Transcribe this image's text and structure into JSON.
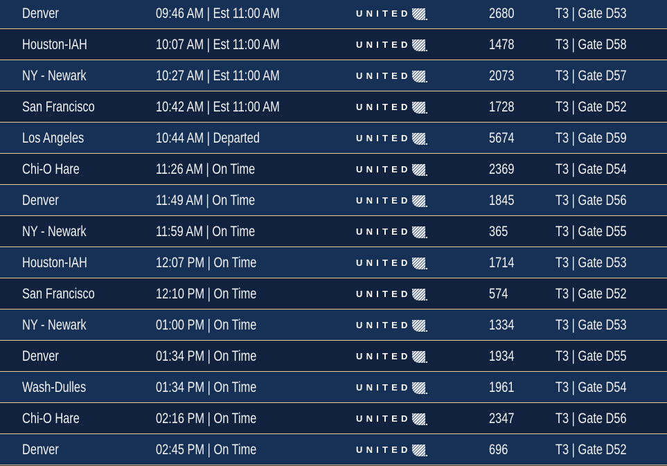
{
  "airline": "UNITED",
  "colors": {
    "row_light": "#173055",
    "row_dark": "#11223e",
    "separator": "#e9d08f",
    "text": "#f2f4f7"
  },
  "flights": [
    {
      "destination": "Denver",
      "time": "09:46 AM | Est 11:00 AM",
      "flight": "2680",
      "gate": "T3 | Gate D53"
    },
    {
      "destination": "Houston-IAH",
      "time": "10:07 AM | Est 11:00 AM",
      "flight": "1478",
      "gate": "T3 | Gate D58"
    },
    {
      "destination": "NY - Newark",
      "time": "10:27 AM | Est 11:00 AM",
      "flight": "2073",
      "gate": "T3 | Gate D57"
    },
    {
      "destination": "San Francisco",
      "time": "10:42 AM | Est 11:00 AM",
      "flight": "1728",
      "gate": "T3 | Gate D52"
    },
    {
      "destination": "Los Angeles",
      "time": "10:44 AM | Departed",
      "flight": "5674",
      "gate": "T3 | Gate D59"
    },
    {
      "destination": "Chi-O Hare",
      "time": "11:26 AM | On Time",
      "flight": "2369",
      "gate": "T3 | Gate D54"
    },
    {
      "destination": "Denver",
      "time": "11:49 AM | On Time",
      "flight": "1845",
      "gate": "T3 | Gate D56"
    },
    {
      "destination": "NY - Newark",
      "time": "11:59 AM | On Time",
      "flight": "365",
      "gate": "T3 | Gate D55"
    },
    {
      "destination": "Houston-IAH",
      "time": "12:07 PM | On Time",
      "flight": "1714",
      "gate": "T3 | Gate D53"
    },
    {
      "destination": "San Francisco",
      "time": "12:10 PM | On Time",
      "flight": "574",
      "gate": "T3 | Gate D52"
    },
    {
      "destination": "NY - Newark",
      "time": "01:00 PM | On Time",
      "flight": "1334",
      "gate": "T3 | Gate D53"
    },
    {
      "destination": "Denver",
      "time": "01:34 PM | On Time",
      "flight": "1934",
      "gate": "T3 | Gate D55"
    },
    {
      "destination": "Wash-Dulles",
      "time": "01:34 PM | On Time",
      "flight": "1961",
      "gate": "T3 | Gate D54"
    },
    {
      "destination": "Chi-O Hare",
      "time": "02:16 PM | On Time",
      "flight": "2347",
      "gate": "T3 | Gate D56"
    },
    {
      "destination": "Denver",
      "time": "02:45 PM | On Time",
      "flight": "696",
      "gate": "T3 | Gate D52"
    }
  ]
}
